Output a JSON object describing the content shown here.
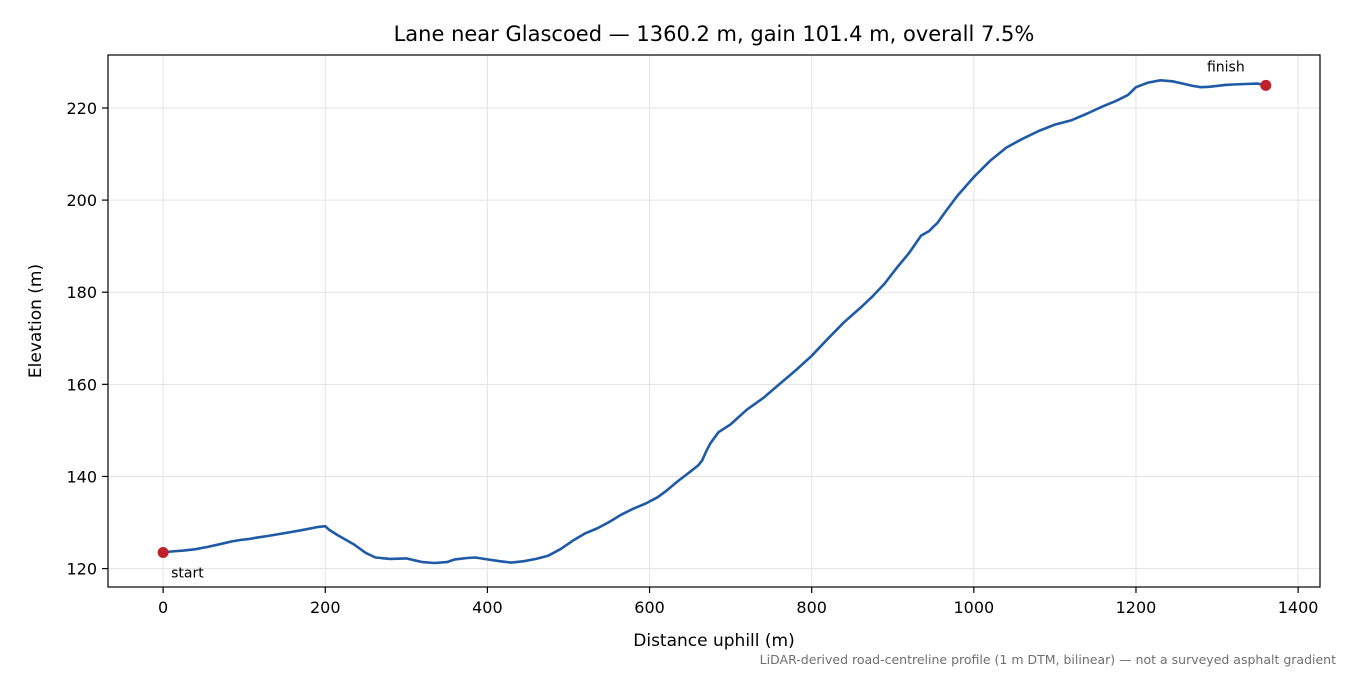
{
  "chart_data": {
    "type": "line",
    "title": "Lane near Glascoed — 1360.2 m, gain 101.4 m, overall 7.5%",
    "xlabel": "Distance uphill (m)",
    "ylabel": "Elevation (m)",
    "xlim": [
      -68,
      1427
    ],
    "ylim": [
      116,
      231.5
    ],
    "xticks": [
      0,
      200,
      400,
      600,
      800,
      1000,
      1200,
      1400
    ],
    "yticks": [
      120,
      140,
      160,
      180,
      200,
      220
    ],
    "grid": true,
    "line_color": "#1f5aa6",
    "marker_color": "#c0202a",
    "series": [
      {
        "x": [
          0,
          10,
          25,
          40,
          55,
          70,
          85,
          95,
          105,
          115,
          130,
          150,
          170,
          190,
          200,
          205,
          215,
          235,
          250,
          262,
          280,
          300,
          310,
          320,
          335,
          350,
          360,
          375,
          385,
          400,
          415,
          430,
          445,
          460,
          475,
          490,
          505,
          520,
          535,
          550,
          565,
          580,
          595,
          610,
          620,
          635,
          650,
          660,
          665,
          670,
          675,
          685,
          700,
          720,
          740,
          760,
          780,
          800,
          820,
          840,
          860,
          875,
          890,
          905,
          920,
          935,
          945,
          950,
          955,
          965,
          980,
          1000,
          1020,
          1040,
          1060,
          1080,
          1100,
          1120,
          1140,
          1160,
          1175,
          1190,
          1200,
          1215,
          1230,
          1245,
          1260,
          1270,
          1280,
          1290,
          1300,
          1310,
          1320,
          1335,
          1350,
          1360.2
        ],
        "y": [
          123.5,
          123.7,
          123.9,
          124.2,
          124.7,
          125.3,
          125.9,
          126.2,
          126.4,
          126.7,
          127.1,
          127.7,
          128.3,
          129.0,
          129.2,
          128.4,
          127.3,
          125.3,
          123.4,
          122.4,
          122.1,
          122.2,
          121.8,
          121.4,
          121.2,
          121.4,
          122.0,
          122.3,
          122.4,
          122.0,
          121.6,
          121.3,
          121.6,
          122.1,
          122.8,
          124.2,
          126.0,
          127.6,
          128.7,
          130.1,
          131.7,
          133.0,
          134.1,
          135.5,
          136.8,
          139.0,
          141.0,
          142.4,
          143.5,
          145.5,
          147.2,
          149.6,
          151.3,
          154.5,
          157.0,
          160.0,
          163.0,
          166.2,
          169.9,
          173.5,
          176.6,
          179.1,
          181.9,
          185.3,
          188.5,
          192.3,
          193.3,
          194.2,
          195.0,
          197.5,
          201.0,
          205.0,
          208.5,
          211.4,
          213.3,
          215.0,
          216.4,
          217.3,
          218.8,
          220.4,
          221.5,
          222.8,
          224.5,
          225.5,
          226.0,
          225.8,
          225.2,
          224.8,
          224.5,
          224.6,
          224.8,
          225.0,
          225.1,
          225.2,
          225.3,
          224.9
        ]
      }
    ],
    "markers": [
      {
        "label": "start",
        "x": 0,
        "y": 123.5
      },
      {
        "label": "finish",
        "x": 1360.2,
        "y": 224.9
      }
    ],
    "footnote": "LiDAR-derived road-centreline profile (1 m DTM, bilinear) — not a surveyed asphalt gradient"
  }
}
